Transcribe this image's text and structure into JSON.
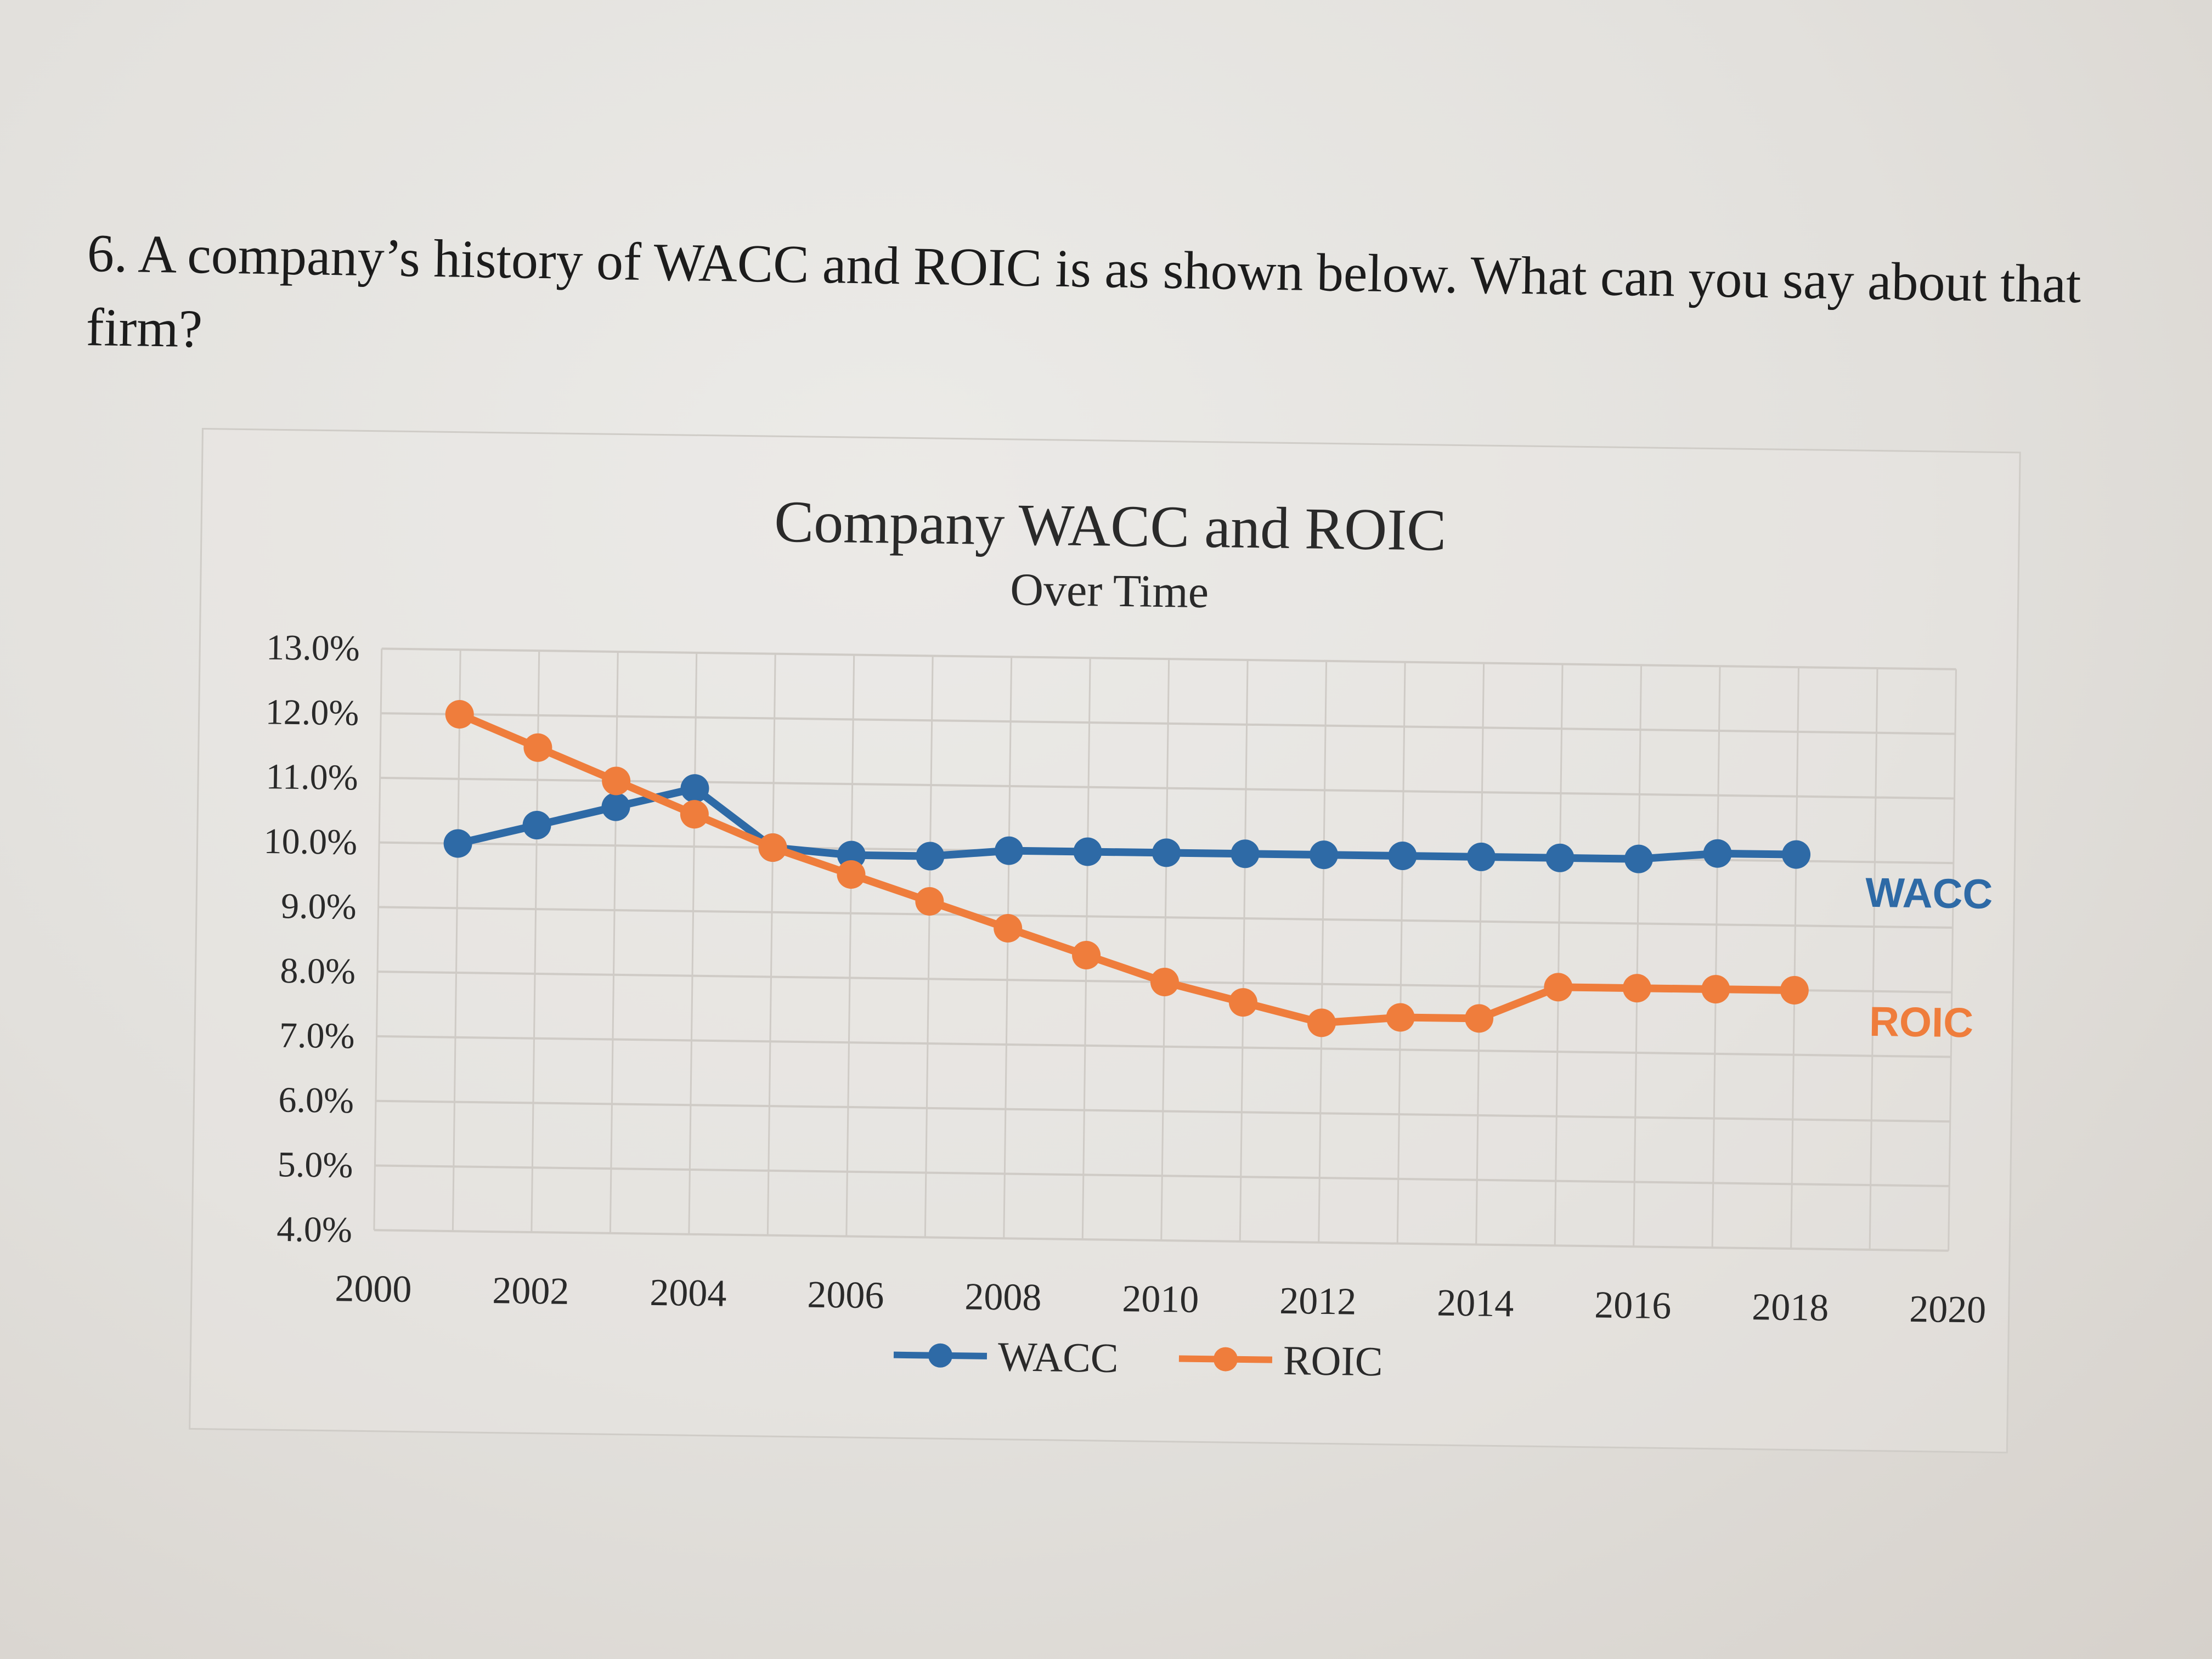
{
  "question": {
    "text": "6. A company’s history of WACC and ROIC is as shown below. What can you say about that firm?"
  },
  "colors": {
    "wacc": "#2e6aa6",
    "roic": "#ef7d3c",
    "grid": "#cfcbc6"
  },
  "chart_data": {
    "type": "line",
    "title": "Company WACC and ROIC",
    "subtitle": "Over Time",
    "xlabel": "",
    "ylabel": "",
    "xlim": [
      2000,
      2020
    ],
    "ylim": [
      4.0,
      13.0
    ],
    "x_ticks": [
      "2000",
      "2002",
      "2004",
      "2006",
      "2008",
      "2010",
      "2012",
      "2014",
      "2016",
      "2018",
      "2020"
    ],
    "y_ticks": [
      "13.0%",
      "12.0%",
      "11.0%",
      "10.0%",
      "9.0%",
      "8.0%",
      "7.0%",
      "6.0%",
      "5.0%",
      "4.0%"
    ],
    "grid": true,
    "legend_position": "bottom",
    "series": [
      {
        "name": "WACC",
        "x": [
          2001,
          2002,
          2003,
          2004,
          2005,
          2006,
          2007,
          2008,
          2009,
          2010,
          2011,
          2012,
          2013,
          2014,
          2015,
          2016,
          2017,
          2018
        ],
        "values": [
          10.0,
          10.3,
          10.6,
          10.9,
          10.0,
          9.9,
          9.9,
          10.0,
          10.0,
          10.0,
          10.0,
          10.0,
          10.0,
          10.0,
          10.0,
          10.0,
          10.1,
          10.1
        ]
      },
      {
        "name": "ROIC",
        "x": [
          2001,
          2002,
          2003,
          2004,
          2005,
          2006,
          2007,
          2008,
          2009,
          2010,
          2011,
          2012,
          2013,
          2014,
          2015,
          2016,
          2017,
          2018
        ],
        "values": [
          12.0,
          11.5,
          11.0,
          10.5,
          10.0,
          9.6,
          9.2,
          8.8,
          8.4,
          8.0,
          7.7,
          7.4,
          7.5,
          7.5,
          8.0,
          8.0,
          8.0,
          8.0
        ]
      }
    ],
    "annotations": [
      "WACC",
      "ROIC"
    ]
  }
}
